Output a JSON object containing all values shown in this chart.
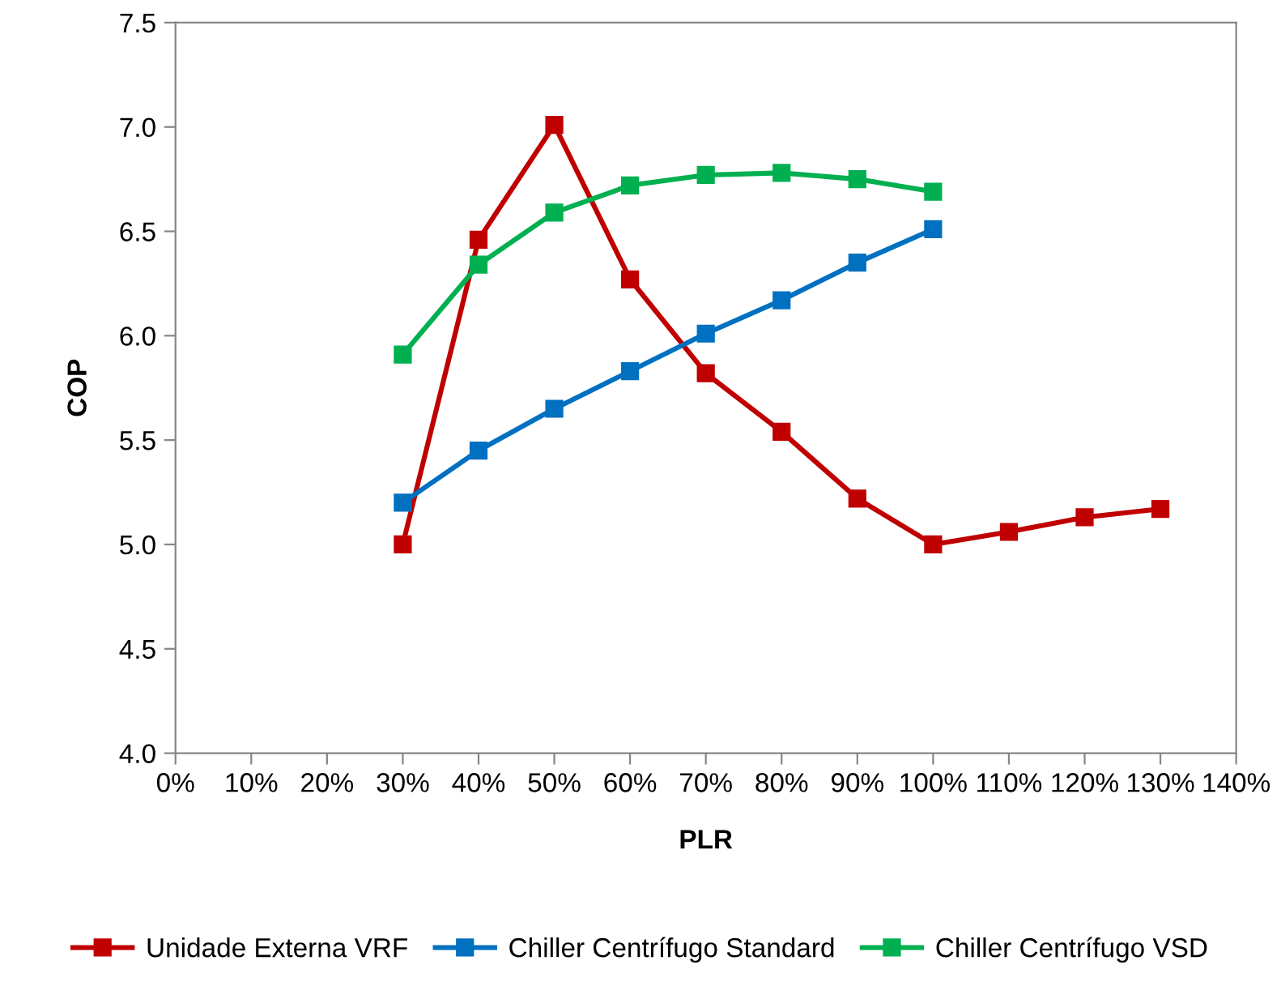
{
  "chart_data": {
    "type": "line",
    "xlabel": "PLR",
    "ylabel": "COP",
    "series": [
      {
        "name": "Unidade Externa VRF",
        "color": "#c00000",
        "x": [
          0.3,
          0.4,
          0.5,
          0.6,
          0.7,
          0.8,
          0.9,
          1.0,
          1.1,
          1.2,
          1.3
        ],
        "values": [
          5.0,
          6.46,
          7.01,
          6.27,
          5.82,
          5.54,
          5.22,
          5.0,
          5.06,
          5.13,
          5.17
        ]
      },
      {
        "name": "Chiller Centrífugo Standard",
        "color": "#0070c0",
        "x": [
          0.3,
          0.4,
          0.5,
          0.6,
          0.7,
          0.8,
          0.9,
          1.0
        ],
        "values": [
          5.2,
          5.45,
          5.65,
          5.83,
          6.01,
          6.17,
          6.35,
          6.51
        ]
      },
      {
        "name": "Chiller Centrífugo VSD",
        "color": "#00b050",
        "x": [
          0.3,
          0.4,
          0.5,
          0.6,
          0.7,
          0.8,
          0.9,
          1.0
        ],
        "values": [
          5.91,
          6.34,
          6.59,
          6.72,
          6.77,
          6.78,
          6.75,
          6.69
        ]
      }
    ],
    "xlim": [
      0,
      1.4
    ],
    "xticks": [
      {
        "value": 0,
        "label": "0%"
      },
      {
        "value": 0.1,
        "label": "10%"
      },
      {
        "value": 0.2,
        "label": "20%"
      },
      {
        "value": 0.3,
        "label": "30%"
      },
      {
        "value": 0.4,
        "label": "40%"
      },
      {
        "value": 0.5,
        "label": "50%"
      },
      {
        "value": 0.6,
        "label": "60%"
      },
      {
        "value": 0.7,
        "label": "70%"
      },
      {
        "value": 0.8,
        "label": "80%"
      },
      {
        "value": 0.9,
        "label": "90%"
      },
      {
        "value": 1.0,
        "label": "100%"
      },
      {
        "value": 1.1,
        "label": "110%"
      },
      {
        "value": 1.2,
        "label": "120%"
      },
      {
        "value": 1.3,
        "label": "130%"
      },
      {
        "value": 1.4,
        "label": "140%"
      }
    ],
    "ylim": [
      4.0,
      7.5
    ],
    "yticks": [
      {
        "value": 4.0,
        "label": "4.0"
      },
      {
        "value": 4.5,
        "label": "4.5"
      },
      {
        "value": 5.0,
        "label": "5.0"
      },
      {
        "value": 5.5,
        "label": "5.5"
      },
      {
        "value": 6.0,
        "label": "6.0"
      },
      {
        "value": 6.5,
        "label": "6.5"
      },
      {
        "value": 7.0,
        "label": "7.0"
      },
      {
        "value": 7.5,
        "label": "7.5"
      }
    ],
    "marker": "square",
    "line_style": "solid",
    "grid": false,
    "legend": "bottom"
  }
}
